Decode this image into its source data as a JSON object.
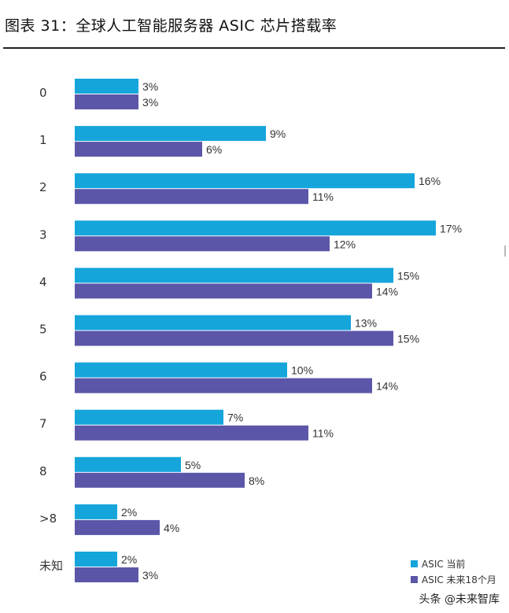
{
  "header": {
    "title": "图表 31：全球人工智能服务器 ASIC 芯片搭载率"
  },
  "colors": {
    "current": "#15a5db",
    "future": "#5b56a8"
  },
  "watermark": {
    "text": "头条 @未来智库"
  },
  "chart_data": {
    "type": "bar",
    "orientation": "horizontal",
    "title": "全球人工智能服务器 ASIC 芯片搭载率",
    "categories": [
      "0",
      "1",
      "2",
      "3",
      "4",
      "5",
      "6",
      "7",
      "8",
      ">8",
      "未知"
    ],
    "series": [
      {
        "name": "ASIC 当前",
        "values": [
          3,
          9,
          16,
          17,
          15,
          13,
          10,
          7,
          5,
          2,
          2
        ],
        "labels": [
          "3%",
          "9%",
          "16%",
          "17%",
          "15%",
          "13%",
          "10%",
          "7%",
          "5%",
          "2%",
          "2%"
        ]
      },
      {
        "name": "ASIC 未来18个月",
        "values": [
          3,
          6,
          11,
          12,
          14,
          15,
          14,
          11,
          8,
          4,
          3
        ],
        "labels": [
          "3%",
          "6%",
          "11%",
          "12%",
          "14%",
          "15%",
          "14%",
          "11%",
          "8%",
          "4%",
          "3%"
        ]
      }
    ],
    "xlim": [
      0,
      17
    ],
    "legend_position": "bottom-right"
  }
}
